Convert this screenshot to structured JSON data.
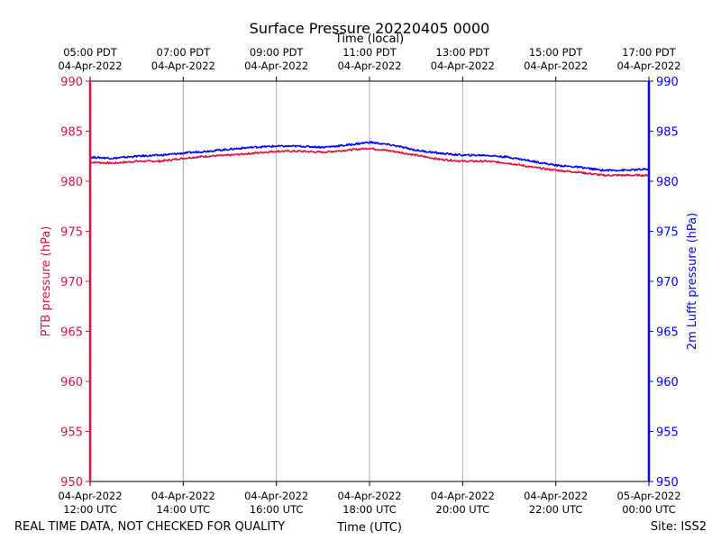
{
  "chart_data": {
    "type": "line",
    "title": "Surface Pressure 20220405 0000",
    "top_xlabel": "Time (local)",
    "xlabel": "Time (UTC)",
    "ylabel_left": "PTB pressure (hPa)",
    "ylabel_right": "2m Lufft pressure (hPa)",
    "ylim": [
      950,
      990
    ],
    "yticks": [
      950,
      955,
      960,
      965,
      970,
      975,
      980,
      985,
      990
    ],
    "xlim_hours_utc": [
      12,
      24
    ],
    "grid": "vertical",
    "bottom_ticks": [
      {
        "line1": "04-Apr-2022",
        "line2": "12:00 UTC"
      },
      {
        "line1": "04-Apr-2022",
        "line2": "14:00 UTC"
      },
      {
        "line1": "04-Apr-2022",
        "line2": "16:00 UTC"
      },
      {
        "line1": "04-Apr-2022",
        "line2": "18:00 UTC"
      },
      {
        "line1": "04-Apr-2022",
        "line2": "20:00 UTC"
      },
      {
        "line1": "04-Apr-2022",
        "line2": "22:00 UTC"
      },
      {
        "line1": "05-Apr-2022",
        "line2": "00:00 UTC"
      }
    ],
    "top_ticks": [
      {
        "line1": "05:00 PDT",
        "line2": "04-Apr-2022"
      },
      {
        "line1": "07:00 PDT",
        "line2": "04-Apr-2022"
      },
      {
        "line1": "09:00 PDT",
        "line2": "04-Apr-2022"
      },
      {
        "line1": "11:00 PDT",
        "line2": "04-Apr-2022"
      },
      {
        "line1": "13:00 PDT",
        "line2": "04-Apr-2022"
      },
      {
        "line1": "15:00 PDT",
        "line2": "04-Apr-2022"
      },
      {
        "line1": "17:00 PDT",
        "line2": "04-Apr-2022"
      }
    ],
    "series": [
      {
        "color": "#dc143c",
        "axis": "left",
        "x": [
          12.0,
          12.5,
          13.0,
          13.5,
          14.0,
          14.5,
          15.0,
          15.5,
          16.0,
          16.5,
          17.0,
          17.5,
          18.0,
          18.5,
          19.0,
          19.5,
          20.0,
          20.5,
          21.0,
          21.5,
          22.0,
          22.5,
          23.0,
          23.5,
          24.0
        ],
        "values": [
          981.9,
          981.8,
          982.0,
          982.0,
          982.3,
          982.5,
          982.6,
          982.8,
          983.0,
          983.0,
          982.9,
          983.1,
          983.3,
          983.0,
          982.6,
          982.2,
          982.0,
          982.0,
          981.8,
          981.4,
          981.1,
          980.9,
          980.6,
          980.6,
          980.6
        ]
      },
      {
        "color": "#0000ff",
        "axis": "right",
        "x": [
          12.0,
          12.5,
          13.0,
          13.5,
          14.0,
          14.5,
          15.0,
          15.5,
          16.0,
          16.5,
          17.0,
          17.5,
          18.0,
          18.5,
          19.0,
          19.5,
          20.0,
          20.5,
          21.0,
          21.5,
          22.0,
          22.5,
          23.0,
          23.5,
          24.0
        ],
        "values": [
          982.4,
          982.3,
          982.5,
          982.6,
          982.8,
          983.0,
          983.2,
          983.4,
          983.5,
          983.5,
          983.4,
          983.6,
          983.9,
          983.6,
          983.1,
          982.8,
          982.6,
          982.6,
          982.4,
          982.0,
          981.6,
          981.4,
          981.1,
          981.1,
          981.2
        ]
      }
    ]
  },
  "footer": {
    "left_note": "REAL TIME DATA, NOT CHECKED FOR QUALITY",
    "site": "Site: ISS2"
  }
}
